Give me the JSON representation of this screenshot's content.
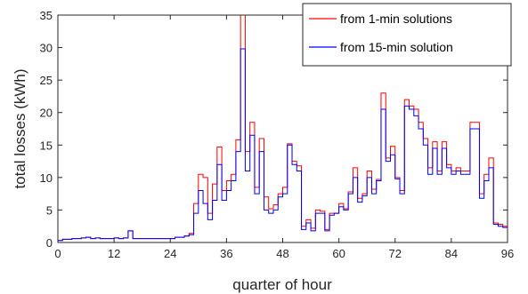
{
  "chart_data": {
    "type": "line",
    "step": true,
    "xlabel": "quarter of hour",
    "ylabel": "total losses (kWh)",
    "xlim": [
      0,
      96
    ],
    "ylim": [
      0,
      35
    ],
    "xticks": [
      0,
      12,
      24,
      36,
      48,
      60,
      72,
      84,
      96
    ],
    "yticks": [
      0,
      5,
      10,
      15,
      20,
      25,
      30,
      35
    ],
    "grid": false,
    "legend_position": "top-right",
    "series": [
      {
        "name": "from 1-min solutions",
        "color": "#ff0000",
        "values": [
          0.3,
          0.5,
          0.5,
          0.6,
          0.6,
          0.7,
          0.8,
          0.6,
          0.7,
          0.6,
          0.6,
          0.6,
          0.7,
          0.6,
          0.7,
          1.8,
          0.6,
          0.6,
          0.6,
          0.6,
          0.6,
          0.6,
          0.6,
          0.6,
          0.6,
          0.8,
          0.8,
          1.0,
          1.4,
          6.0,
          10.5,
          10.0,
          4.5,
          9.0,
          14.7,
          8.0,
          9.5,
          10.5,
          15.8,
          35.0,
          14.0,
          18.5,
          8.5,
          16.0,
          7.0,
          5.2,
          5.8,
          7.5,
          8.5,
          15.2,
          12.5,
          11.8,
          2.5,
          3.5,
          2.2,
          5.0,
          4.8,
          2.0,
          4.5,
          4.5,
          6.0,
          5.2,
          7.8,
          11.5,
          6.8,
          7.5,
          11.0,
          8.2,
          9.7,
          23.0,
          13.0,
          14.8,
          10.0,
          8.0,
          22.0,
          21.0,
          20.5,
          18.5,
          16.0,
          11.5,
          15.5,
          11.0,
          15.5,
          12.0,
          11.0,
          11.5,
          11.0,
          11.0,
          18.5,
          18.5,
          7.5,
          10.5,
          13.0,
          3.0,
          2.8,
          2.5
        ]
      },
      {
        "name": "from 15-min solution",
        "color": "#0000ff",
        "values": [
          0.3,
          0.5,
          0.5,
          0.6,
          0.6,
          0.7,
          0.8,
          0.6,
          0.7,
          0.6,
          0.6,
          0.6,
          0.7,
          0.6,
          0.7,
          1.8,
          0.6,
          0.6,
          0.6,
          0.6,
          0.6,
          0.6,
          0.6,
          0.6,
          0.6,
          0.8,
          0.8,
          1.0,
          1.2,
          4.5,
          8.0,
          6.0,
          3.5,
          6.5,
          12.0,
          6.5,
          8.0,
          9.5,
          14.0,
          29.8,
          11.0,
          16.5,
          7.5,
          14.0,
          5.0,
          4.5,
          5.0,
          7.0,
          7.5,
          15.0,
          12.0,
          11.0,
          2.0,
          3.0,
          1.8,
          4.5,
          4.5,
          1.8,
          4.2,
          4.5,
          5.5,
          5.0,
          7.5,
          10.0,
          6.2,
          7.2,
          10.0,
          7.5,
          9.5,
          20.5,
          12.5,
          13.5,
          9.8,
          7.5,
          21.0,
          20.5,
          19.5,
          17.5,
          15.0,
          10.5,
          14.5,
          10.5,
          14.5,
          11.5,
          10.5,
          11.0,
          10.5,
          10.5,
          17.5,
          17.5,
          6.8,
          9.5,
          11.5,
          2.8,
          2.5,
          2.3
        ]
      }
    ]
  }
}
